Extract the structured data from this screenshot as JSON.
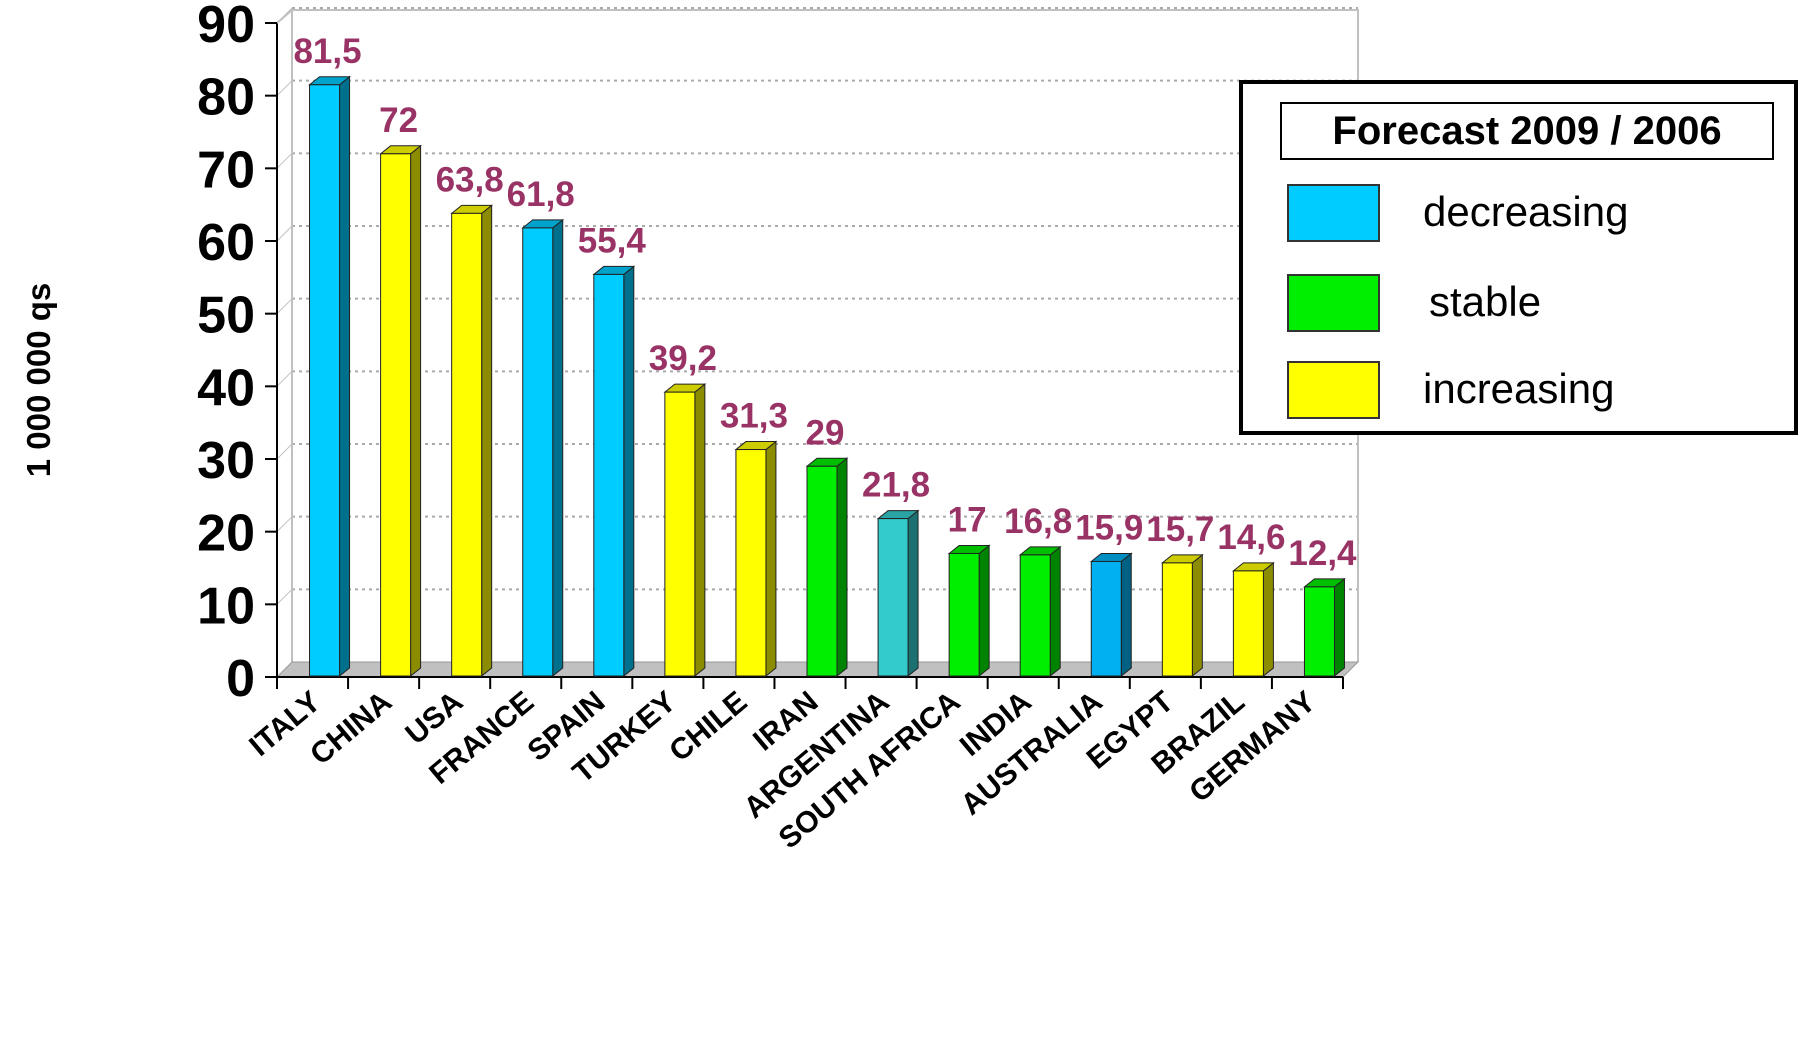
{
  "chart_data": {
    "type": "bar",
    "title": "",
    "xlabel": "",
    "ylabel": "1 000 000 qs",
    "ylim": [
      0,
      90
    ],
    "yticks": [
      0,
      10,
      20,
      30,
      40,
      50,
      60,
      70,
      80,
      90
    ],
    "grid": true,
    "legend_position": "top-right",
    "categories": [
      "ITALY",
      "CHINA",
      "USA",
      "FRANCE",
      "SPAIN",
      "TURKEY",
      "CHILE",
      "IRAN",
      "ARGENTINA",
      "SOUTH AFRICA",
      "INDIA",
      "AUSTRALIA",
      "EGYPT",
      "BRAZIL",
      "GERMANY"
    ],
    "values": [
      81.5,
      72,
      63.8,
      61.8,
      55.4,
      39.2,
      31.3,
      29,
      21.8,
      17,
      16.8,
      15.9,
      15.7,
      14.6,
      12.4
    ],
    "data_labels": [
      "81,5",
      "72",
      "63,8",
      "61,8",
      "55,4",
      "39,2",
      "31,3",
      "29",
      "21,8",
      "17",
      "16,8",
      "15,9",
      "15,7",
      "14,6",
      "12,4"
    ],
    "bar_colors": [
      "#00ccff",
      "#ffff00",
      "#ffff00",
      "#00ccff",
      "#00ccff",
      "#ffff00",
      "#ffff00",
      "#00ee00",
      "#33cccc",
      "#00ee00",
      "#00ee00",
      "#00b0f0",
      "#ffff00",
      "#ffff00",
      "#00ee00"
    ],
    "legend": {
      "title": "Forecast 2009 / 2006",
      "items": [
        {
          "label": "decreasing",
          "color": "#00ccff"
        },
        {
          "label": "stable",
          "color": "#00ee00"
        },
        {
          "label": "increasing",
          "color": "#ffff00"
        }
      ]
    }
  }
}
